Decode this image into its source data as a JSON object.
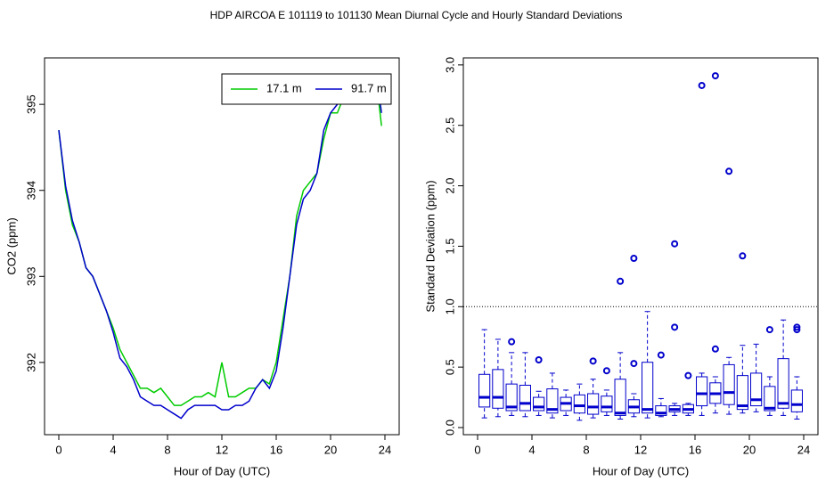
{
  "title": "HDP   AIRCOA E   101119 to 101130   Mean Diurnal Cycle and Hourly Standard Deviations",
  "chart_data": [
    {
      "type": "line",
      "xlabel": "Hour of Day (UTC)",
      "ylabel": "CO2 (ppm)",
      "x": [
        0,
        0.5,
        1,
        1.5,
        2,
        2.5,
        3,
        3.5,
        4,
        4.5,
        5,
        5.5,
        6,
        6.5,
        7,
        7.5,
        8,
        8.5,
        9,
        9.5,
        10,
        10.5,
        11,
        11.5,
        12,
        12.5,
        13,
        13.5,
        14,
        14.5,
        15,
        15.5,
        16,
        16.5,
        17,
        17.5,
        18,
        18.5,
        19,
        19.5,
        20,
        20.5,
        21,
        21.5,
        22,
        22.5,
        23,
        23.5,
        23.75
      ],
      "series": [
        {
          "name": "17.1 m",
          "color": "#00cc00",
          "values": [
            394.7,
            394.0,
            393.6,
            393.4,
            393.1,
            393.0,
            392.8,
            392.6,
            392.4,
            392.15,
            392.0,
            391.85,
            391.7,
            391.7,
            391.65,
            391.7,
            391.6,
            391.5,
            391.5,
            391.55,
            391.6,
            391.6,
            391.65,
            391.6,
            392.0,
            391.6,
            391.6,
            391.65,
            391.7,
            391.7,
            391.8,
            391.75,
            392.0,
            392.5,
            393.0,
            393.7,
            394.0,
            394.1,
            394.2,
            394.6,
            394.9,
            394.9,
            395.1,
            395.1,
            395.1,
            395.1,
            395.2,
            395.1,
            394.75
          ]
        },
        {
          "name": "91.7 m",
          "color": "#0000cc",
          "values": [
            394.7,
            394.05,
            393.65,
            393.4,
            393.1,
            393.0,
            392.8,
            392.6,
            392.35,
            392.05,
            391.95,
            391.8,
            391.6,
            391.55,
            391.5,
            391.5,
            391.45,
            391.4,
            391.35,
            391.45,
            391.5,
            391.5,
            391.5,
            391.5,
            391.45,
            391.45,
            391.5,
            391.5,
            391.55,
            391.7,
            391.8,
            391.7,
            391.9,
            392.4,
            393.0,
            393.6,
            393.9,
            394.0,
            394.2,
            394.7,
            394.9,
            395.0,
            395.1,
            395.2,
            395.3,
            395.25,
            395.3,
            395.2,
            394.9
          ]
        }
      ],
      "xlim": [
        -1.05,
        25.05
      ],
      "xticks": [
        0,
        4,
        8,
        12,
        16,
        20,
        24
      ],
      "ylim": [
        391.16,
        395.54
      ],
      "yticks": [
        392,
        393,
        394,
        395
      ],
      "legend": "topright"
    },
    {
      "type": "box",
      "xlabel": "Hour of Day (UTC)",
      "ylabel": "Standard Deviation (ppm)",
      "color": "#0000cc",
      "boxes": [
        {
          "x": 0.5,
          "low": 0.08,
          "q1": 0.17,
          "median": 0.25,
          "q3": 0.44,
          "high": 0.81
        },
        {
          "x": 1.5,
          "low": 0.09,
          "q1": 0.16,
          "median": 0.25,
          "q3": 0.48,
          "high": 0.73
        },
        {
          "x": 2.5,
          "low": 0.1,
          "q1": 0.14,
          "median": 0.17,
          "q3": 0.36,
          "high": 0.62
        },
        {
          "x": 3.5,
          "low": 0.09,
          "q1": 0.14,
          "median": 0.2,
          "q3": 0.35,
          "high": 0.62
        },
        {
          "x": 4.5,
          "low": 0.1,
          "q1": 0.14,
          "median": 0.17,
          "q3": 0.25,
          "high": 0.3
        },
        {
          "x": 5.5,
          "low": 0.08,
          "q1": 0.12,
          "median": 0.15,
          "q3": 0.32,
          "high": 0.45
        },
        {
          "x": 6.5,
          "low": 0.1,
          "q1": 0.14,
          "median": 0.2,
          "q3": 0.25,
          "high": 0.31
        },
        {
          "x": 7.5,
          "low": 0.06,
          "q1": 0.12,
          "median": 0.18,
          "q3": 0.27,
          "high": 0.36
        },
        {
          "x": 8.5,
          "low": 0.08,
          "q1": 0.11,
          "median": 0.17,
          "q3": 0.28,
          "high": 0.4
        },
        {
          "x": 9.5,
          "low": 0.1,
          "q1": 0.13,
          "median": 0.17,
          "q3": 0.26,
          "high": 0.31
        },
        {
          "x": 10.5,
          "low": 0.07,
          "q1": 0.1,
          "median": 0.12,
          "q3": 0.4,
          "high": 0.62
        },
        {
          "x": 11.5,
          "low": 0.09,
          "q1": 0.12,
          "median": 0.17,
          "q3": 0.23,
          "high": 0.28
        },
        {
          "x": 12.5,
          "low": 0.08,
          "q1": 0.12,
          "median": 0.15,
          "q3": 0.54,
          "high": 0.96
        },
        {
          "x": 13.5,
          "low": 0.09,
          "q1": 0.1,
          "median": 0.12,
          "q3": 0.18,
          "high": 0.24
        },
        {
          "x": 14.5,
          "low": 0.1,
          "q1": 0.13,
          "median": 0.15,
          "q3": 0.18,
          "high": 0.2
        },
        {
          "x": 15.5,
          "low": 0.1,
          "q1": 0.12,
          "median": 0.15,
          "q3": 0.19,
          "high": 0.2
        },
        {
          "x": 16.5,
          "low": 0.1,
          "q1": 0.18,
          "median": 0.28,
          "q3": 0.42,
          "high": 0.45
        },
        {
          "x": 17.5,
          "low": 0.12,
          "q1": 0.2,
          "median": 0.28,
          "q3": 0.37,
          "high": 0.42
        },
        {
          "x": 18.5,
          "low": 0.11,
          "q1": 0.19,
          "median": 0.29,
          "q3": 0.52,
          "high": 0.58
        },
        {
          "x": 19.5,
          "low": 0.12,
          "q1": 0.15,
          "median": 0.18,
          "q3": 0.43,
          "high": 0.68
        },
        {
          "x": 20.5,
          "low": 0.13,
          "q1": 0.18,
          "median": 0.23,
          "q3": 0.45,
          "high": 0.69
        },
        {
          "x": 21.5,
          "low": 0.1,
          "q1": 0.14,
          "median": 0.16,
          "q3": 0.34,
          "high": 0.42
        },
        {
          "x": 22.5,
          "low": 0.1,
          "q1": 0.16,
          "median": 0.2,
          "q3": 0.57,
          "high": 0.89
        },
        {
          "x": 23.5,
          "low": 0.07,
          "q1": 0.13,
          "median": 0.19,
          "q3": 0.31,
          "high": 0.42
        }
      ],
      "outliers": [
        {
          "x": 2.5,
          "y": 0.71
        },
        {
          "x": 4.5,
          "y": 0.56
        },
        {
          "x": 8.5,
          "y": 0.55
        },
        {
          "x": 9.5,
          "y": 0.47
        },
        {
          "x": 10.5,
          "y": 1.21
        },
        {
          "x": 11.5,
          "y": 0.53
        },
        {
          "x": 11.5,
          "y": 1.4
        },
        {
          "x": 13.5,
          "y": 0.6
        },
        {
          "x": 14.5,
          "y": 0.83
        },
        {
          "x": 14.5,
          "y": 1.52
        },
        {
          "x": 15.5,
          "y": 0.43
        },
        {
          "x": 16.5,
          "y": 2.83
        },
        {
          "x": 17.5,
          "y": 0.65
        },
        {
          "x": 17.5,
          "y": 2.91
        },
        {
          "x": 18.5,
          "y": 2.12
        },
        {
          "x": 19.5,
          "y": 1.42
        },
        {
          "x": 21.5,
          "y": 0.81
        },
        {
          "x": 23.5,
          "y": 0.81
        },
        {
          "x": 23.5,
          "y": 0.83
        }
      ],
      "reference_line": 1,
      "xlim": [
        -1.05,
        25.05
      ],
      "xticks": [
        0,
        4,
        8,
        12,
        16,
        20,
        24
      ],
      "ylim": [
        -0.059,
        3.058
      ],
      "yticks": [
        {
          "value": 0,
          "label": "0.0"
        },
        0.5,
        {
          "value": 1,
          "label": "1.0"
        },
        1.5,
        {
          "value": 2,
          "label": "2.0"
        },
        2.5,
        {
          "value": 3,
          "label": "3.0"
        }
      ]
    }
  ]
}
